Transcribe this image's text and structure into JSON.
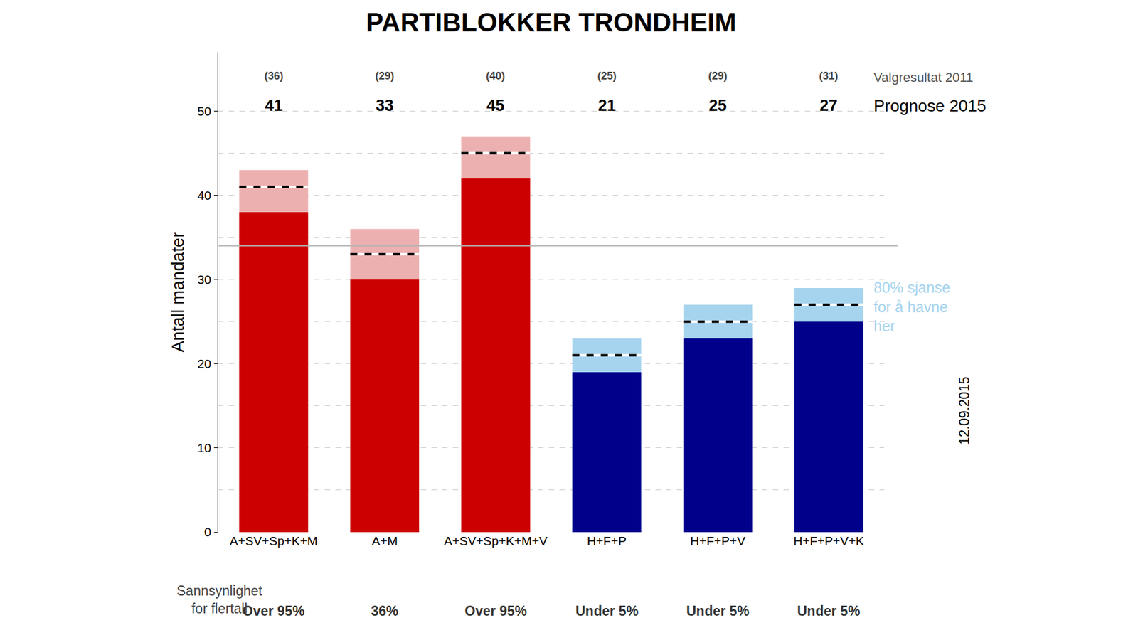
{
  "chart_data": {
    "type": "bar",
    "title": "PARTIBLOKKER TRONDHEIM",
    "ylabel": "Antall mandater",
    "categories": [
      "A+SV+Sp+K+M",
      "A+M",
      "A+SV+Sp+K+M+V",
      "H+F+P",
      "H+F+P+V",
      "H+F+P+V+K"
    ],
    "values": [
      41,
      33,
      45,
      21,
      25,
      27
    ],
    "values_title": "Prognose 2015",
    "line_style": "dashed",
    "interval_low": [
      38,
      30,
      42,
      19,
      23,
      25
    ],
    "interval_high": [
      43,
      36,
      47,
      23,
      27,
      29
    ],
    "colors": [
      "#cc0000",
      "#cc0000",
      "#cc0000",
      "#00008b",
      "#00008b",
      "#00008b"
    ],
    "interval_colors": [
      "#edb0b0",
      "#edb0b0",
      "#edb0b0",
      "#a6d4ee",
      "#a6d4ee",
      "#a6d4ee"
    ],
    "interval_annotation": [
      "80% sjanse",
      "for å havne",
      "her"
    ],
    "result_2011": [
      36,
      29,
      40,
      25,
      29,
      31
    ],
    "result_2011_labels": [
      "(36)",
      "(29)",
      "(40)",
      "(25)",
      "(29)",
      "(31)"
    ],
    "result_2011_title": "Valgresultat 2011",
    "majority": 34,
    "majority_probability": [
      "Over 95%",
      "36%",
      "Over 95%",
      "Under 5%",
      "Under 5%",
      "Under 5%"
    ],
    "majority_probability_title": [
      "Sannsynlighet",
      "for flertall"
    ],
    "date": "12.09.2015",
    "ylim": [
      0,
      57
    ],
    "yticks": [
      0,
      10,
      20,
      30,
      40,
      50
    ],
    "grid": true
  }
}
